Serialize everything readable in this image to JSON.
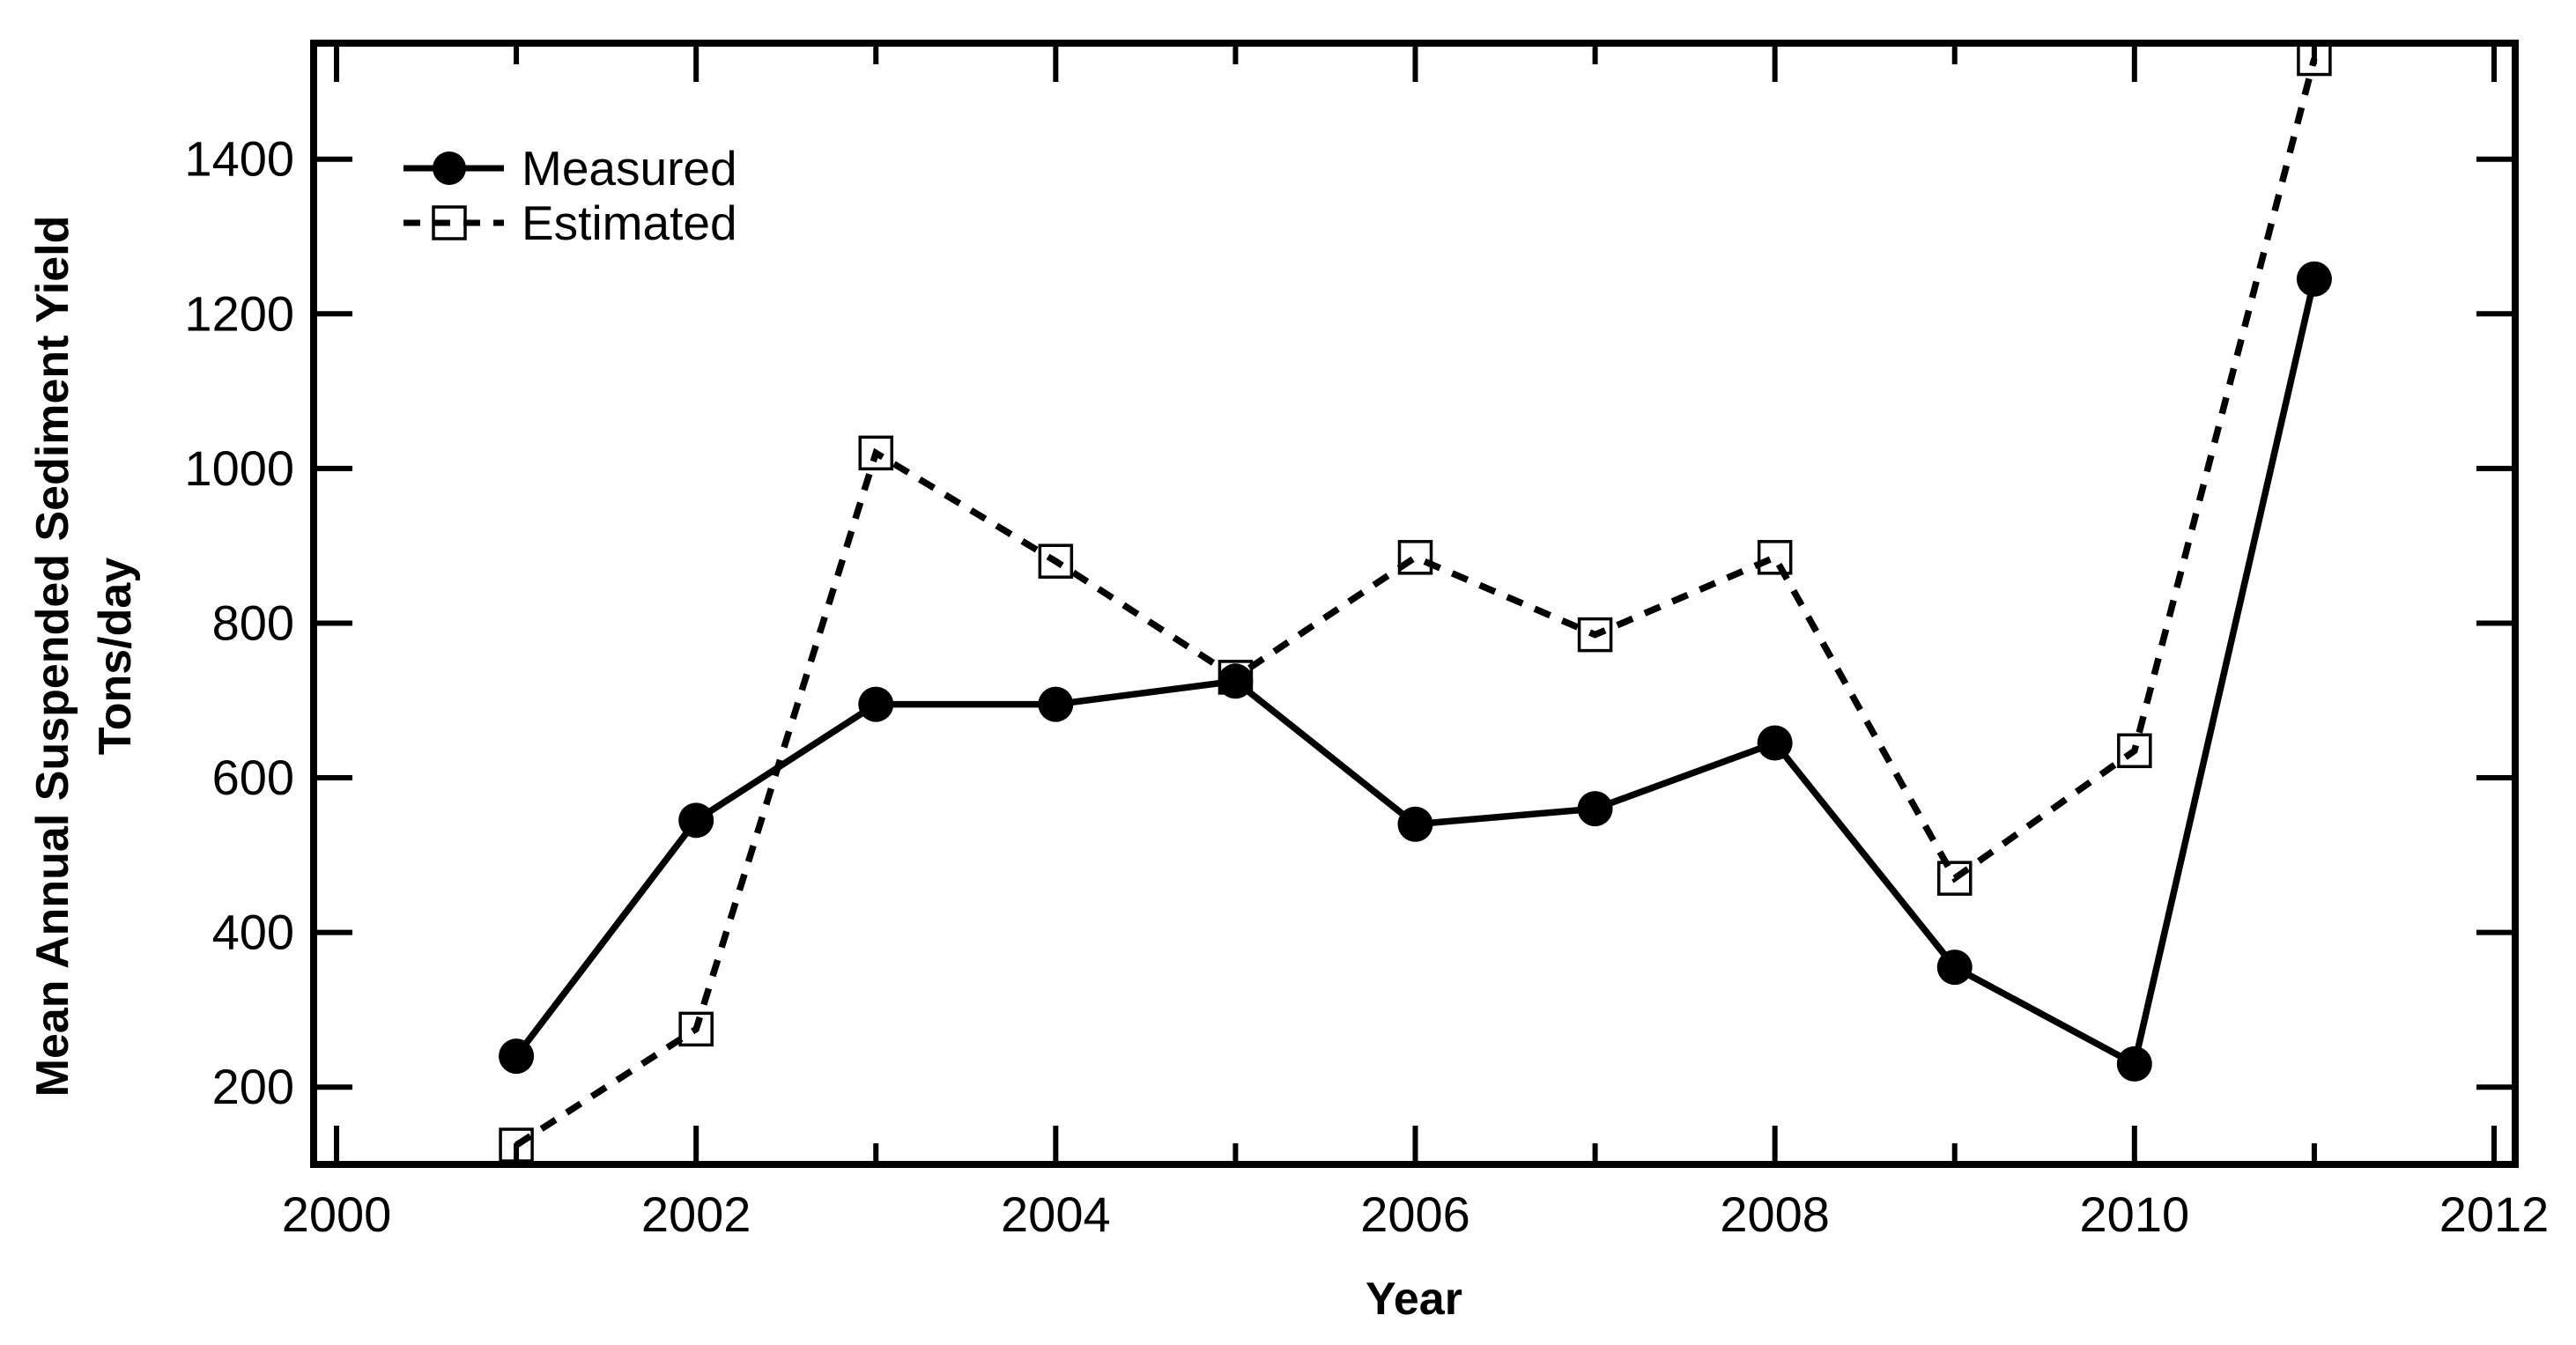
{
  "figure": {
    "background": "#ffffff",
    "foreground": "#000000"
  },
  "chart_data": {
    "type": "line",
    "title": "",
    "x": [
      2001,
      2002,
      2003,
      2004,
      2005,
      2006,
      2007,
      2008,
      2009,
      2010,
      2011
    ],
    "series": [
      {
        "name": "Measured",
        "marker": "filled-circle",
        "line_style": "solid",
        "color": "#000000",
        "values": [
          240,
          545,
          695,
          695,
          725,
          540,
          560,
          645,
          355,
          230,
          1245
        ]
      },
      {
        "name": "Estimated",
        "marker": "open-square",
        "line_style": "dashed",
        "color": "#000000",
        "values": [
          125,
          275,
          1020,
          880,
          730,
          885,
          785,
          885,
          470,
          635,
          1530
        ]
      }
    ],
    "xlabel": "Year",
    "ylabel": "Mean Annual Suspended Sediment Yield Tons/day",
    "ylabel_lines": [
      "Mean Annual Suspended Sediment Yield",
      "Tons/day"
    ],
    "xlim": [
      2000,
      2012
    ],
    "ylim": [
      100,
      1550
    ],
    "x_major_ticks": [
      2000,
      2002,
      2004,
      2006,
      2008,
      2010,
      2012
    ],
    "x_minor_ticks": [
      2001,
      2003,
      2005,
      2007,
      2009,
      2011
    ],
    "y_major_ticks": [
      200,
      400,
      600,
      800,
      1000,
      1200,
      1400
    ],
    "grid": false,
    "legend_position": "upper-left"
  }
}
